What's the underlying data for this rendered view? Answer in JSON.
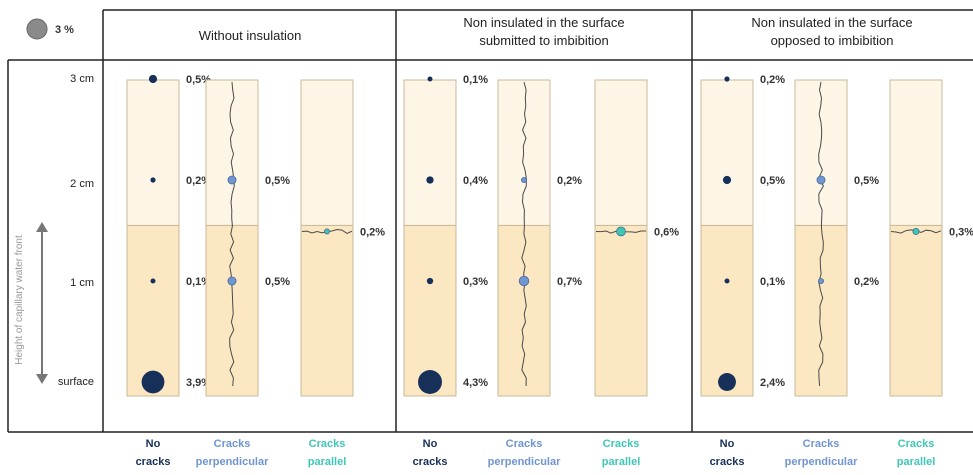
{
  "legend": {
    "value_label": "3 %",
    "circle_color": "#8a8a8a"
  },
  "y_axis": {
    "label": "Height of capillary water front",
    "ticks": [
      "3 cm",
      "2 cm",
      "1 cm",
      "surface"
    ]
  },
  "colors": {
    "no_cracks": "#17305a",
    "perpendicular": "#6f95d2",
    "parallel": "#3fc7b6",
    "dry": "#fdf6e6",
    "wet": "#fbe8c2",
    "col_border": "#c8b898"
  },
  "chart_data": {
    "type": "bubble",
    "water_front_height_cm": 1.55,
    "categories": [
      {
        "line1": "No",
        "line2": "cracks"
      },
      {
        "line1": "Cracks",
        "line2": "perpendicular"
      },
      {
        "line1": "Cracks",
        "line2": "parallel"
      }
    ],
    "groups": [
      {
        "title_lines": [
          "Without insulation"
        ],
        "no_cracks": [
          {
            "height_cm": 3,
            "value": 0.5,
            "label": "0,5%"
          },
          {
            "height_cm": 2,
            "value": 0.2,
            "label": "0,2%"
          },
          {
            "height_cm": 1,
            "value": 0.1,
            "label": "0,1%"
          },
          {
            "height_cm": 0,
            "value": 3.9,
            "label": "3,9%"
          }
        ],
        "perpendicular": [
          {
            "height_cm": 2,
            "value": 0.5,
            "label": "0,5%"
          },
          {
            "height_cm": 1,
            "value": 0.5,
            "label": "0,5%"
          }
        ],
        "parallel": [
          {
            "height_cm": 1.55,
            "value": 0.2,
            "label": "0,2%"
          }
        ]
      },
      {
        "title_lines": [
          "Non insulated in the surface",
          "submitted to imbibition"
        ],
        "no_cracks": [
          {
            "height_cm": 3,
            "value": 0.1,
            "label": "0,1%"
          },
          {
            "height_cm": 2,
            "value": 0.4,
            "label": "0,4%"
          },
          {
            "height_cm": 1,
            "value": 0.3,
            "label": "0,3%"
          },
          {
            "height_cm": 0,
            "value": 4.3,
            "label": "4,3%"
          }
        ],
        "perpendicular": [
          {
            "height_cm": 2,
            "value": 0.2,
            "label": "0,2%"
          },
          {
            "height_cm": 1,
            "value": 0.7,
            "label": "0,7%"
          }
        ],
        "parallel": [
          {
            "height_cm": 1.55,
            "value": 0.6,
            "label": "0,6%"
          }
        ]
      },
      {
        "title_lines": [
          "Non insulated in the surface",
          "opposed to imbibition"
        ],
        "no_cracks": [
          {
            "height_cm": 3,
            "value": 0.2,
            "label": "0,2%"
          },
          {
            "height_cm": 2,
            "value": 0.5,
            "label": "0,5%"
          },
          {
            "height_cm": 1,
            "value": 0.1,
            "label": "0,1%"
          },
          {
            "height_cm": 0,
            "value": 2.4,
            "label": "2,4%"
          }
        ],
        "perpendicular": [
          {
            "height_cm": 2,
            "value": 0.5,
            "label": "0,5%"
          },
          {
            "height_cm": 1,
            "value": 0.2,
            "label": "0,2%"
          }
        ],
        "parallel": [
          {
            "height_cm": 1.55,
            "value": 0.3,
            "label": "0,3%"
          }
        ]
      }
    ]
  }
}
